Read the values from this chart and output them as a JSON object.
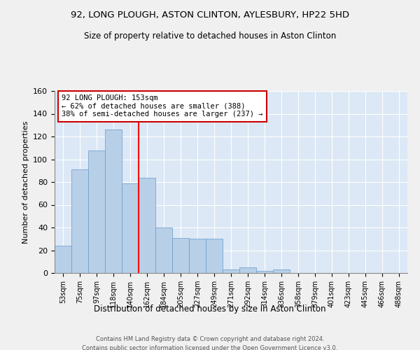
{
  "title1": "92, LONG PLOUGH, ASTON CLINTON, AYLESBURY, HP22 5HD",
  "title2": "Size of property relative to detached houses in Aston Clinton",
  "xlabel": "Distribution of detached houses by size in Aston Clinton",
  "ylabel": "Number of detached properties",
  "categories": [
    "53sqm",
    "75sqm",
    "97sqm",
    "118sqm",
    "140sqm",
    "162sqm",
    "184sqm",
    "205sqm",
    "227sqm",
    "249sqm",
    "271sqm",
    "292sqm",
    "314sqm",
    "336sqm",
    "358sqm",
    "379sqm",
    "401sqm",
    "423sqm",
    "445sqm",
    "466sqm",
    "488sqm"
  ],
  "values": [
    24,
    91,
    108,
    126,
    79,
    84,
    40,
    31,
    30,
    30,
    3,
    5,
    2,
    3,
    0,
    0,
    0,
    0,
    0,
    0,
    0
  ],
  "bar_color": "#b8cfe8",
  "bar_edge_color": "#6699cc",
  "red_line_x": 4.5,
  "annotation_text": "92 LONG PLOUGH: 153sqm\n← 62% of detached houses are smaller (388)\n38% of semi-detached houses are larger (237) →",
  "annotation_box_color": "#ffffff",
  "annotation_box_edge_color": "#cc0000",
  "ylim": [
    0,
    160
  ],
  "yticks": [
    0,
    20,
    40,
    60,
    80,
    100,
    120,
    140,
    160
  ],
  "background_color": "#dce8f5",
  "grid_color": "#ffffff",
  "footer1": "Contains HM Land Registry data © Crown copyright and database right 2024.",
  "footer2": "Contains public sector information licensed under the Open Government Licence v3.0."
}
